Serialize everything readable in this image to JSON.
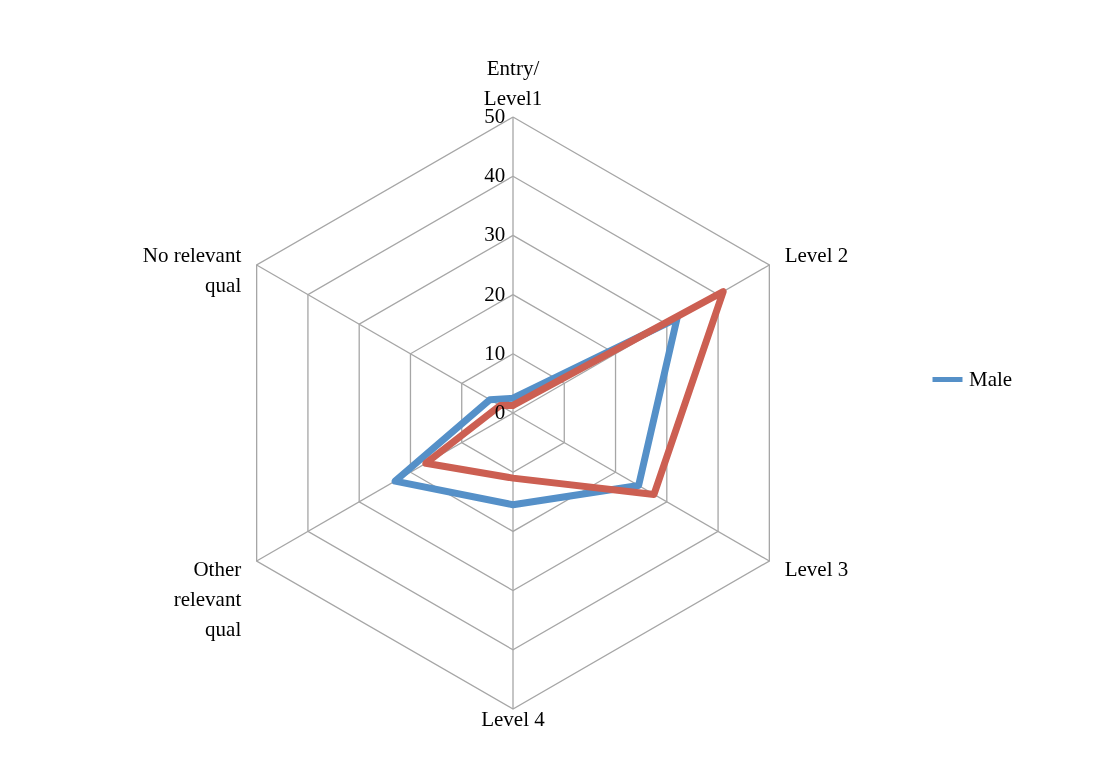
{
  "chart_data": {
    "type": "radar",
    "categories": [
      "Entry/\nLevel1",
      "Level 2",
      "Level 3",
      "Level 4",
      "Other\nrelevant\nqual",
      "No relevant\nqual"
    ],
    "series": [
      {
        "name": "Male",
        "color": "#5590c8",
        "values": [
          2.5,
          32,
          24.5,
          15.5,
          23,
          4.5
        ]
      },
      {
        "color": "#cc5f52",
        "values": [
          1.3,
          41,
          27.5,
          11,
          17,
          2.5
        ]
      }
    ],
    "ylim": [
      0,
      50
    ],
    "yticks": [
      0,
      10,
      20,
      30,
      40,
      50
    ],
    "grid": true,
    "legend": "right"
  }
}
